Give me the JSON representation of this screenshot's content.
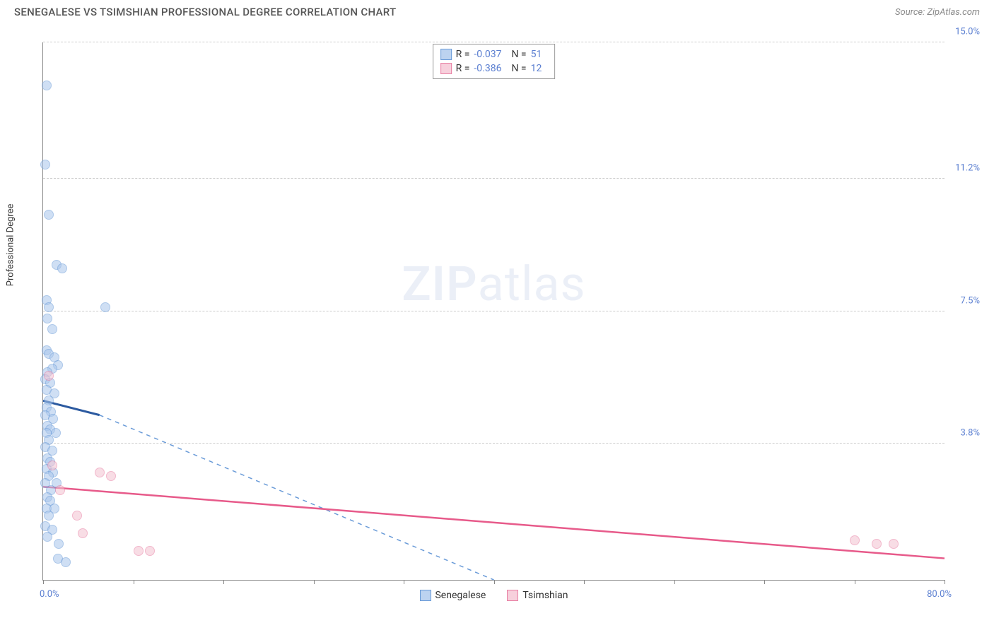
{
  "title": "SENEGALESE VS TSIMSHIAN PROFESSIONAL DEGREE CORRELATION CHART",
  "source": "Source: ZipAtlas.com",
  "ylabel": "Professional Degree",
  "watermark": {
    "bold": "ZIP",
    "rest": "atlas"
  },
  "chart": {
    "type": "scatter",
    "xlim": [
      0,
      80
    ],
    "ylim": [
      0,
      15
    ],
    "x_ticks": [
      0,
      8,
      16,
      24,
      32,
      40,
      48,
      56,
      64,
      72,
      80
    ],
    "y_gridlines": [
      3.8,
      7.5,
      11.2,
      15.0
    ],
    "y_tick_labels": [
      "3.8%",
      "7.5%",
      "11.2%",
      "15.0%"
    ],
    "xlim_labels": [
      "0.0%",
      "80.0%"
    ],
    "background_color": "#ffffff",
    "grid_color": "#cccccc",
    "axis_color": "#888888",
    "tick_label_color": "#5b7fd1",
    "point_radius": 7,
    "point_opacity": 0.55,
    "series": [
      {
        "name": "Senegalese",
        "color_fill": "#a9c6ec",
        "color_stroke": "#6a9bd8",
        "swatch_fill": "#bcd3f0",
        "swatch_border": "#6a9bd8",
        "r": "-0.037",
        "n": "51",
        "trend": {
          "solid": {
            "x1": 0,
            "y1": 5.0,
            "x2": 5,
            "y2": 4.6,
            "color": "#2c5aa0",
            "width": 3
          },
          "dashed": {
            "x1": 5,
            "y1": 4.6,
            "x2": 40,
            "y2": 0,
            "color": "#6a9bd8",
            "width": 1.5
          }
        },
        "points": [
          [
            0.3,
            13.8
          ],
          [
            0.2,
            11.6
          ],
          [
            0.5,
            10.2
          ],
          [
            1.2,
            8.8
          ],
          [
            1.7,
            8.7
          ],
          [
            0.3,
            7.8
          ],
          [
            0.5,
            7.6
          ],
          [
            5.5,
            7.6
          ],
          [
            0.4,
            7.3
          ],
          [
            0.8,
            7.0
          ],
          [
            0.3,
            6.4
          ],
          [
            0.5,
            6.3
          ],
          [
            1.0,
            6.2
          ],
          [
            1.3,
            6.0
          ],
          [
            0.8,
            5.9
          ],
          [
            0.4,
            5.8
          ],
          [
            0.2,
            5.6
          ],
          [
            0.6,
            5.5
          ],
          [
            0.3,
            5.3
          ],
          [
            1.0,
            5.2
          ],
          [
            0.5,
            5.0
          ],
          [
            0.3,
            4.8
          ],
          [
            0.7,
            4.7
          ],
          [
            0.2,
            4.6
          ],
          [
            0.9,
            4.5
          ],
          [
            0.4,
            4.3
          ],
          [
            0.6,
            4.2
          ],
          [
            0.3,
            4.1
          ],
          [
            1.1,
            4.1
          ],
          [
            0.5,
            3.9
          ],
          [
            0.2,
            3.7
          ],
          [
            0.8,
            3.6
          ],
          [
            0.4,
            3.4
          ],
          [
            0.6,
            3.3
          ],
          [
            0.3,
            3.1
          ],
          [
            0.9,
            3.0
          ],
          [
            0.5,
            2.9
          ],
          [
            0.2,
            2.7
          ],
          [
            1.2,
            2.7
          ],
          [
            0.7,
            2.5
          ],
          [
            0.4,
            2.3
          ],
          [
            0.6,
            2.2
          ],
          [
            0.3,
            2.0
          ],
          [
            1.0,
            2.0
          ],
          [
            0.5,
            1.8
          ],
          [
            0.2,
            1.5
          ],
          [
            0.8,
            1.4
          ],
          [
            0.4,
            1.2
          ],
          [
            1.4,
            1.0
          ],
          [
            1.3,
            0.6
          ],
          [
            2.0,
            0.5
          ]
        ]
      },
      {
        "name": "Tsimshian",
        "color_fill": "#f4c2d0",
        "color_stroke": "#e87fa3",
        "swatch_fill": "#f7d0dc",
        "swatch_border": "#e87fa3",
        "r": "-0.386",
        "n": "12",
        "trend": {
          "solid": {
            "x1": 0,
            "y1": 2.6,
            "x2": 80,
            "y2": 0.6,
            "color": "#e75a8a",
            "width": 2.5
          }
        },
        "points": [
          [
            0.5,
            5.7
          ],
          [
            0.8,
            3.2
          ],
          [
            1.5,
            2.5
          ],
          [
            3.0,
            1.8
          ],
          [
            3.5,
            1.3
          ],
          [
            5.0,
            3.0
          ],
          [
            6.0,
            2.9
          ],
          [
            8.5,
            0.8
          ],
          [
            9.5,
            0.8
          ],
          [
            72.0,
            1.1
          ],
          [
            74.0,
            1.0
          ],
          [
            75.5,
            1.0
          ]
        ]
      }
    ],
    "legend_top_labels": {
      "r_prefix": "R =",
      "n_prefix": "N ="
    },
    "legend_bottom": [
      "Senegalese",
      "Tsimshian"
    ]
  }
}
